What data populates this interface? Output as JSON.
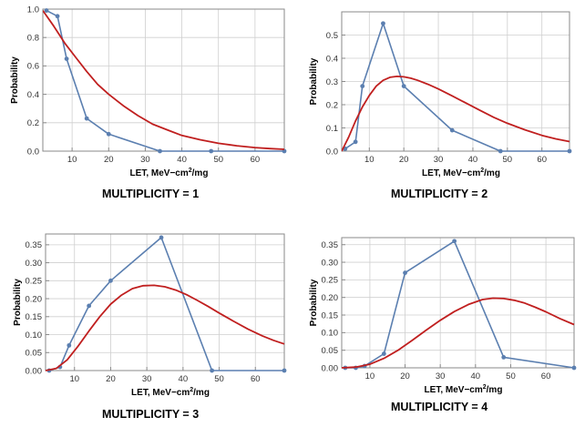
{
  "theme": {
    "points_color": "#5b7fb0",
    "curve_color": "#c01f1f",
    "grid_color": "#cfcfcf",
    "axis_color": "#8a8a8a"
  },
  "chart_data": [
    {
      "type": "line",
      "caption": "MULTIPLICITY = 1",
      "xlabel": "LET, MeV−cm",
      "xlabel_sup": "2",
      "xlabel_end": "/mg",
      "ylabel": "Probability",
      "xlim": [
        2,
        68
      ],
      "ylim": [
        0,
        1.0
      ],
      "xticks": [
        10,
        20,
        30,
        40,
        50,
        60
      ],
      "yticks": [
        0.0,
        0.2,
        0.4,
        0.6,
        0.8,
        1.0
      ],
      "ytick_labels": [
        "0.0",
        "0.2",
        "0.4",
        "0.6",
        "0.8",
        "1.0"
      ],
      "grid": true,
      "series": [
        {
          "kind": "points-line",
          "x": [
            3,
            6,
            8.5,
            14,
            20,
            34,
            48,
            68
          ],
          "y": [
            0.99,
            0.95,
            0.65,
            0.23,
            0.12,
            0.0,
            0.0,
            0.0
          ]
        },
        {
          "kind": "curve",
          "x": [
            2,
            5,
            8,
            11,
            14,
            17,
            20,
            24,
            28,
            32,
            36,
            40,
            45,
            50,
            55,
            60,
            64,
            68
          ],
          "y": [
            0.99,
            0.88,
            0.76,
            0.66,
            0.56,
            0.47,
            0.4,
            0.32,
            0.25,
            0.19,
            0.15,
            0.11,
            0.08,
            0.055,
            0.038,
            0.025,
            0.018,
            0.013
          ]
        }
      ]
    },
    {
      "type": "line",
      "caption": "MULTIPLICITY = 2",
      "xlabel": "LET, MeV−cm",
      "xlabel_sup": "2",
      "xlabel_end": "/mg",
      "ylabel": "Probability",
      "xlim": [
        2,
        68
      ],
      "ylim": [
        0,
        0.6
      ],
      "xticks": [
        10,
        20,
        30,
        40,
        50,
        60
      ],
      "yticks": [
        0.0,
        0.1,
        0.2,
        0.3,
        0.4,
        0.5
      ],
      "ytick_labels": [
        "0.0",
        "0.1",
        "0.2",
        "0.3",
        "0.4",
        "0.5"
      ],
      "grid": true,
      "series": [
        {
          "kind": "points-line",
          "x": [
            3,
            6,
            8,
            14,
            20,
            34,
            48,
            68
          ],
          "y": [
            0.01,
            0.04,
            0.28,
            0.55,
            0.28,
            0.09,
            0.0,
            0.0
          ]
        },
        {
          "kind": "curve",
          "x": [
            2,
            4,
            6,
            8,
            10,
            12,
            14,
            16,
            18,
            20,
            22,
            24,
            27,
            30,
            34,
            38,
            42,
            46,
            50,
            55,
            60,
            64,
            68
          ],
          "y": [
            0.0,
            0.06,
            0.13,
            0.19,
            0.24,
            0.28,
            0.305,
            0.318,
            0.322,
            0.32,
            0.314,
            0.305,
            0.288,
            0.268,
            0.238,
            0.207,
            0.176,
            0.146,
            0.12,
            0.092,
            0.068,
            0.053,
            0.041
          ]
        }
      ]
    },
    {
      "type": "line",
      "caption": "MULTIPLICITY = 3",
      "xlabel": "LET, MeV−cm",
      "xlabel_sup": "2",
      "xlabel_end": "/mg",
      "ylabel": "Probability",
      "xlim": [
        2,
        68
      ],
      "ylim": [
        0,
        0.38
      ],
      "xticks": [
        10,
        20,
        30,
        40,
        50,
        60
      ],
      "yticks": [
        0.0,
        0.05,
        0.1,
        0.15,
        0.2,
        0.25,
        0.3,
        0.35
      ],
      "ytick_labels": [
        "0.00",
        "0.05",
        "0.10",
        "0.15",
        "0.20",
        "0.25",
        "0.30",
        "0.35"
      ],
      "grid": true,
      "series": [
        {
          "kind": "points-line",
          "x": [
            3,
            6,
            8.5,
            14,
            20,
            34,
            48,
            68
          ],
          "y": [
            0.0,
            0.01,
            0.07,
            0.18,
            0.25,
            0.37,
            0.0,
            0.0
          ]
        },
        {
          "kind": "curve",
          "x": [
            2,
            5,
            8,
            11,
            14,
            17,
            20,
            23,
            26,
            29,
            32,
            35,
            38,
            41,
            44,
            47,
            50,
            54,
            58,
            62,
            65,
            68
          ],
          "y": [
            0.0,
            0.006,
            0.03,
            0.068,
            0.11,
            0.15,
            0.185,
            0.21,
            0.228,
            0.236,
            0.237,
            0.233,
            0.224,
            0.211,
            0.195,
            0.178,
            0.16,
            0.137,
            0.115,
            0.096,
            0.084,
            0.074
          ]
        }
      ]
    },
    {
      "type": "line",
      "caption": "MULTIPLICITY = 4",
      "xlabel": "LET, MeV−cm",
      "xlabel_sup": "2",
      "xlabel_end": "/mg",
      "ylabel": "Probability",
      "xlim": [
        2,
        68
      ],
      "ylim": [
        0,
        0.37
      ],
      "xticks": [
        10,
        20,
        30,
        40,
        50,
        60
      ],
      "yticks": [
        0.0,
        0.05,
        0.1,
        0.15,
        0.2,
        0.25,
        0.3,
        0.35
      ],
      "ytick_labels": [
        "0.00",
        "0.05",
        "0.10",
        "0.15",
        "0.20",
        "0.25",
        "0.30",
        "0.35"
      ],
      "grid": true,
      "series": [
        {
          "kind": "points-line",
          "x": [
            3,
            6,
            8.5,
            14,
            20,
            34,
            48,
            68
          ],
          "y": [
            0.0,
            0.0,
            0.005,
            0.04,
            0.27,
            0.36,
            0.03,
            0.0
          ]
        },
        {
          "kind": "curve",
          "x": [
            2,
            6,
            10,
            14,
            18,
            22,
            26,
            30,
            34,
            38,
            42,
            45,
            48,
            51,
            54,
            57,
            60,
            64,
            68
          ],
          "y": [
            0.0,
            0.002,
            0.01,
            0.027,
            0.05,
            0.078,
            0.107,
            0.135,
            0.16,
            0.18,
            0.194,
            0.198,
            0.197,
            0.192,
            0.184,
            0.172,
            0.159,
            0.14,
            0.123
          ]
        }
      ]
    }
  ]
}
